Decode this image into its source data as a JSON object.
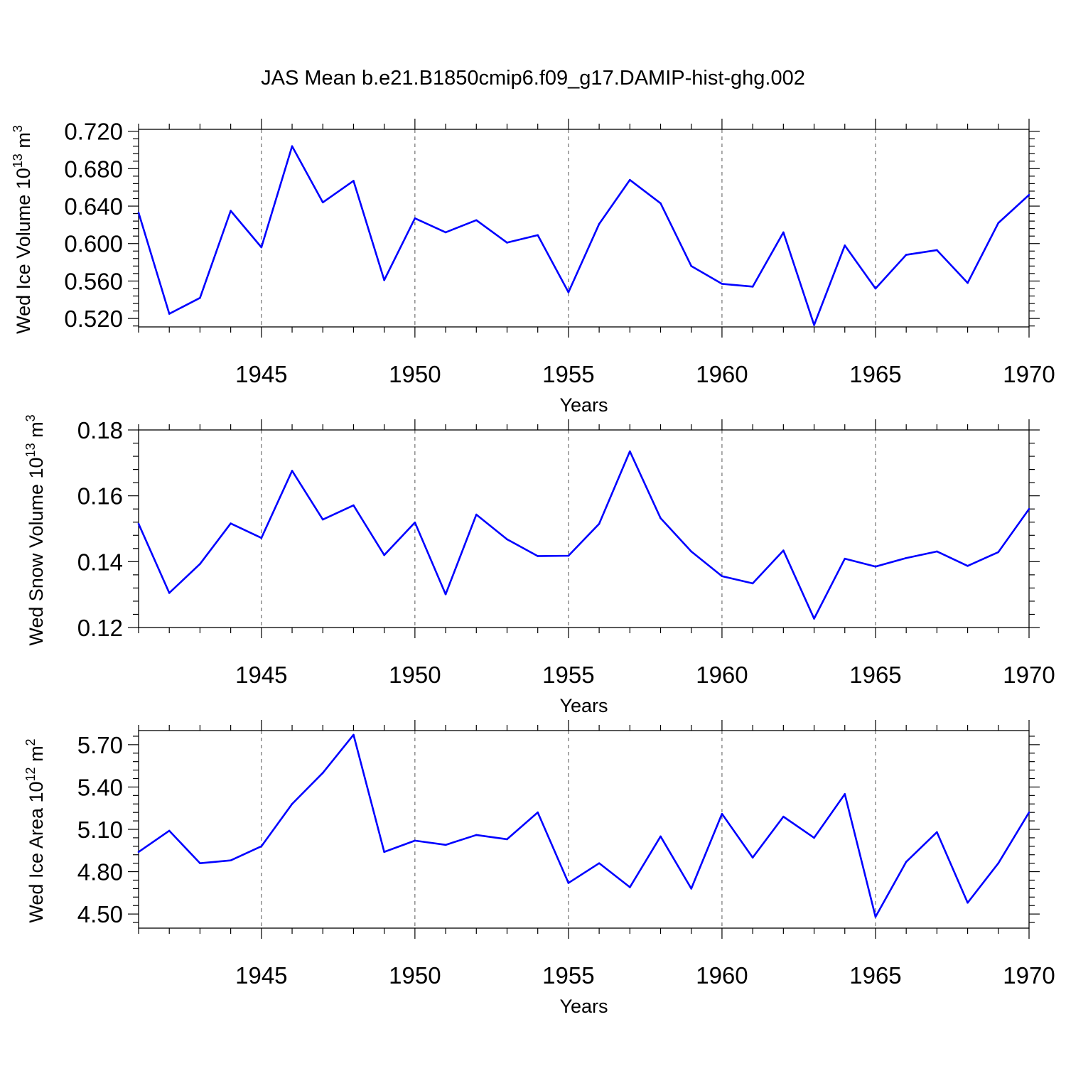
{
  "title": "JAS Mean b.e21.B1850cmip6.f09_g17.DAMIP-hist-ghg.002",
  "colors": {
    "line": "#0000ff",
    "axis": "#000000",
    "grid": "#555555"
  },
  "chart_data": [
    {
      "type": "line",
      "id": "ice-volume",
      "ylabel": "Wed Ice Volume 10",
      "ylabel_exp": "13",
      "ylabel_unit": " m",
      "ylabel_unit_exp": "3",
      "xlabel": "Years",
      "xlim": [
        1941,
        1970
      ],
      "ylim": [
        0.511,
        0.722
      ],
      "yticks": [
        0.52,
        0.56,
        0.6,
        0.64,
        0.68,
        0.72
      ],
      "ytick_labels": [
        "0.520",
        "0.560",
        "0.600",
        "0.640",
        "0.680",
        "0.720"
      ],
      "xticks": [
        1945,
        1950,
        1955,
        1960,
        1965,
        1970
      ],
      "xtick_labels": [
        "1945",
        "1950",
        "1955",
        "1960",
        "1965",
        "1970"
      ],
      "x": [
        1941,
        1942,
        1943,
        1944,
        1945,
        1946,
        1947,
        1948,
        1949,
        1950,
        1951,
        1952,
        1953,
        1954,
        1955,
        1956,
        1957,
        1958,
        1959,
        1960,
        1961,
        1962,
        1963,
        1964,
        1965,
        1966,
        1967,
        1968,
        1969,
        1970
      ],
      "values": [
        0.633,
        0.525,
        0.542,
        0.635,
        0.596,
        0.704,
        0.644,
        0.667,
        0.561,
        0.627,
        0.612,
        0.625,
        0.601,
        0.609,
        0.548,
        0.621,
        0.668,
        0.643,
        0.576,
        0.557,
        0.554,
        0.612,
        0.513,
        0.598,
        0.552,
        0.588,
        0.593,
        0.558,
        0.622,
        0.652
      ]
    },
    {
      "type": "line",
      "id": "snow-volume",
      "ylabel": "Wed Snow Volume 10",
      "ylabel_exp": "13",
      "ylabel_unit": " m",
      "ylabel_unit_exp": "3",
      "xlabel": "Years",
      "xlim": [
        1941,
        1970
      ],
      "ylim": [
        0.12,
        0.18
      ],
      "yticks": [
        0.12,
        0.14,
        0.16,
        0.18
      ],
      "ytick_labels": [
        "0.12",
        "0.14",
        "0.16",
        "0.18"
      ],
      "xticks": [
        1945,
        1950,
        1955,
        1960,
        1965,
        1970
      ],
      "xtick_labels": [
        "1945",
        "1950",
        "1955",
        "1960",
        "1965",
        "1970"
      ],
      "x": [
        1941,
        1942,
        1943,
        1944,
        1945,
        1946,
        1947,
        1948,
        1949,
        1950,
        1951,
        1952,
        1953,
        1954,
        1955,
        1956,
        1957,
        1958,
        1959,
        1960,
        1961,
        1962,
        1963,
        1964,
        1965,
        1966,
        1967,
        1968,
        1969,
        1970
      ],
      "values": [
        0.1515,
        0.1305,
        0.1393,
        0.1516,
        0.1472,
        0.1676,
        0.1528,
        0.1571,
        0.142,
        0.1519,
        0.1301,
        0.1543,
        0.1468,
        0.1417,
        0.1418,
        0.1515,
        0.1735,
        0.1532,
        0.1431,
        0.1356,
        0.1334,
        0.1434,
        0.1227,
        0.1409,
        0.1385,
        0.1411,
        0.1431,
        0.1387,
        0.1429,
        0.156
      ]
    },
    {
      "type": "line",
      "id": "ice-area",
      "ylabel": "Wed Ice Area 10",
      "ylabel_exp": "12",
      "ylabel_unit": " m",
      "ylabel_unit_exp": "2",
      "xlabel": "Years",
      "xlim": [
        1941,
        1970
      ],
      "ylim": [
        4.4,
        5.8
      ],
      "yticks": [
        4.5,
        4.8,
        5.1,
        5.4,
        5.7
      ],
      "ytick_labels": [
        "4.50",
        "4.80",
        "5.10",
        "5.40",
        "5.70"
      ],
      "xticks": [
        1945,
        1950,
        1955,
        1960,
        1965,
        1970
      ],
      "xtick_labels": [
        "1945",
        "1950",
        "1955",
        "1960",
        "1965",
        "1970"
      ],
      "x": [
        1941,
        1942,
        1943,
        1944,
        1945,
        1946,
        1947,
        1948,
        1949,
        1950,
        1951,
        1952,
        1953,
        1954,
        1955,
        1956,
        1957,
        1958,
        1959,
        1960,
        1961,
        1962,
        1963,
        1964,
        1965,
        1966,
        1967,
        1968,
        1969,
        1970
      ],
      "values": [
        4.94,
        5.09,
        4.86,
        4.88,
        4.98,
        5.28,
        5.5,
        5.77,
        4.94,
        5.02,
        4.99,
        5.06,
        5.03,
        5.22,
        4.72,
        4.86,
        4.69,
        5.05,
        4.68,
        5.21,
        4.9,
        5.19,
        5.04,
        5.35,
        4.48,
        4.87,
        5.08,
        4.58,
        4.86,
        5.22
      ]
    }
  ]
}
